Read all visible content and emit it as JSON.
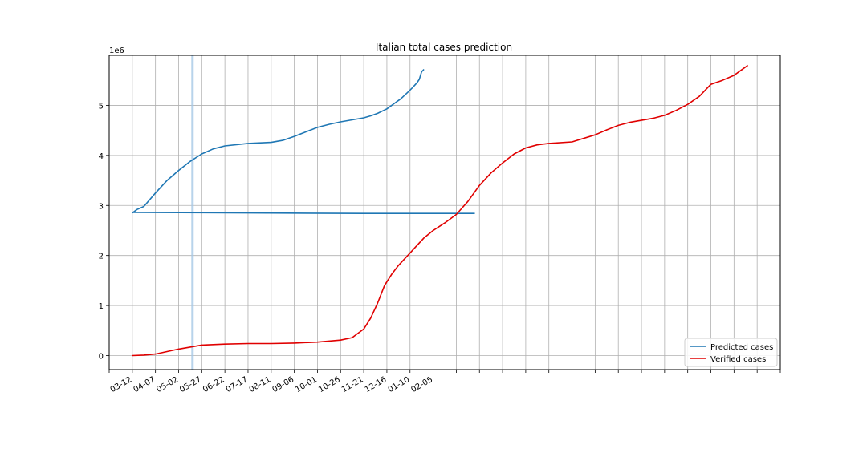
{
  "chart_data": {
    "type": "line",
    "title": "Italian total cases prediction",
    "xlabel": "",
    "ylabel": "",
    "y_scale_label": "1e6",
    "ylim": [
      -0.28,
      6.0
    ],
    "yticks": [
      0,
      1,
      2,
      3,
      4,
      5
    ],
    "xlim": [
      -1,
      28
    ],
    "x_tick_labels": [
      "",
      "03-12",
      "04-07",
      "05-02",
      "05-27",
      "06-22",
      "07-17",
      "08-11",
      "09-06",
      "10-01",
      "10-26",
      "11-21",
      "12-16",
      "01-10",
      "02-05",
      "",
      "",
      "",
      "",
      "",
      "",
      "",
      "",
      "",
      "",
      "",
      "",
      "",
      "",
      ""
    ],
    "grid": true,
    "highlight_x": 2.6,
    "legend_position": "lower right",
    "series": [
      {
        "name": "Predicted cases",
        "color": "#1f77b4",
        "x": [
          0,
          0.2,
          0.5,
          1.0,
          1.5,
          2.0,
          2.5,
          3.0,
          3.5,
          4.0,
          5.0,
          6.0,
          6.5,
          7.0,
          7.5,
          8.0,
          8.5,
          9.0,
          9.5,
          10.0,
          10.3,
          10.6,
          11.0,
          11.3,
          11.6,
          11.9,
          12.1,
          12.3,
          12.4,
          12.5,
          12.6
        ],
        "y": [
          2.85,
          2.92,
          2.98,
          3.25,
          3.5,
          3.7,
          3.88,
          4.03,
          4.13,
          4.19,
          4.24,
          4.26,
          4.3,
          4.38,
          4.47,
          4.56,
          4.62,
          4.67,
          4.71,
          4.75,
          4.79,
          4.84,
          4.93,
          5.03,
          5.13,
          5.26,
          5.35,
          5.45,
          5.52,
          5.67,
          5.72
        ]
      },
      {
        "name": "Predicted cases baseline",
        "color": "#1f77b4",
        "x": [
          0,
          5,
          10,
          14.8
        ],
        "y": [
          2.86,
          2.85,
          2.84,
          2.84
        ]
      },
      {
        "name": "Verified cases",
        "color": "#e00000",
        "x": [
          0,
          0.5,
          1.0,
          1.5,
          2.0,
          2.5,
          3.0,
          3.5,
          4.0,
          5.0,
          6.0,
          7.0,
          8.0,
          8.5,
          9.0,
          9.5,
          10.0,
          10.3,
          10.6,
          10.9,
          11.2,
          11.5,
          11.8,
          12.0,
          12.3,
          12.6,
          13.0,
          13.5,
          14.0,
          14.5,
          15.0,
          15.5,
          16.0,
          16.5,
          17.0,
          17.5,
          18.0,
          19.0,
          20.0,
          20.5,
          21.0,
          21.5,
          22.0,
          22.5,
          23.0,
          23.5,
          24.0,
          24.5,
          25.0,
          25.5,
          26.0,
          26.3,
          26.6
        ],
        "y": [
          0.0,
          0.01,
          0.03,
          0.08,
          0.13,
          0.17,
          0.21,
          0.22,
          0.23,
          0.24,
          0.24,
          0.25,
          0.27,
          0.29,
          0.31,
          0.36,
          0.53,
          0.75,
          1.05,
          1.4,
          1.62,
          1.8,
          1.95,
          2.05,
          2.2,
          2.35,
          2.5,
          2.65,
          2.82,
          3.08,
          3.4,
          3.65,
          3.85,
          4.03,
          4.15,
          4.21,
          4.24,
          4.27,
          4.41,
          4.51,
          4.6,
          4.66,
          4.7,
          4.74,
          4.8,
          4.9,
          5.02,
          5.18,
          5.42,
          5.5,
          5.6,
          5.7,
          5.8
        ]
      }
    ]
  }
}
